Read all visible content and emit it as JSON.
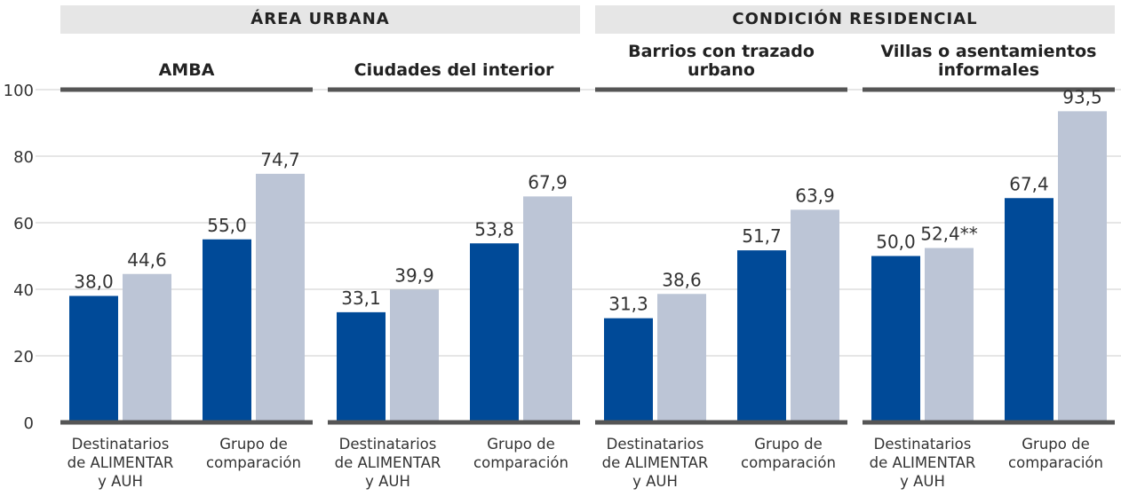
{
  "chart_data": {
    "type": "bar",
    "ylim": [
      0,
      100
    ],
    "yticks": [
      0,
      20,
      40,
      60,
      80,
      100
    ],
    "grid": true,
    "colors": [
      "#004a98",
      "#bcc5d6"
    ],
    "groups": [
      {
        "title": "ÁREA URBANA",
        "panels": [
          {
            "title": "AMBA",
            "categories": [
              "Destinatarios\nde ALIMENTAR\ny AUH",
              "Grupo de\ncomparación"
            ],
            "series": [
              {
                "values": [
                  38.0,
                  55.0
                ],
                "value_labels": [
                  "38,0",
                  "55,0"
                ]
              },
              {
                "values": [
                  44.6,
                  74.7
                ],
                "value_labels": [
                  "44,6",
                  "74,7"
                ]
              }
            ]
          },
          {
            "title": "Ciudades del interior",
            "categories": [
              "Destinatarios\nde ALIMENTAR\ny AUH",
              "Grupo de\ncomparación"
            ],
            "series": [
              {
                "values": [
                  33.1,
                  53.8
                ],
                "value_labels": [
                  "33,1",
                  "53,8"
                ]
              },
              {
                "values": [
                  39.9,
                  67.9
                ],
                "value_labels": [
                  "39,9",
                  "67,9"
                ]
              }
            ]
          }
        ]
      },
      {
        "title": "CONDICIÓN RESIDENCIAL",
        "panels": [
          {
            "title": "Barrios con trazado\nurbano",
            "categories": [
              "Destinatarios\nde ALIMENTAR\ny AUH",
              "Grupo de\ncomparación"
            ],
            "series": [
              {
                "values": [
                  31.3,
                  51.7
                ],
                "value_labels": [
                  "31,3",
                  "51,7"
                ]
              },
              {
                "values": [
                  38.6,
                  63.9
                ],
                "value_labels": [
                  "38,6",
                  "63,9"
                ]
              }
            ]
          },
          {
            "title": "Villas o asentamientos\ninformales",
            "categories": [
              "Destinatarios\nde ALIMENTAR\ny AUH",
              "Grupo de\ncomparación"
            ],
            "series": [
              {
                "values": [
                  50.0,
                  67.4
                ],
                "value_labels": [
                  "50,0",
                  "67,4"
                ]
              },
              {
                "values": [
                  52.4,
                  93.5
                ],
                "value_labels": [
                  "52,4**",
                  "93,5"
                ]
              }
            ]
          }
        ]
      }
    ]
  }
}
